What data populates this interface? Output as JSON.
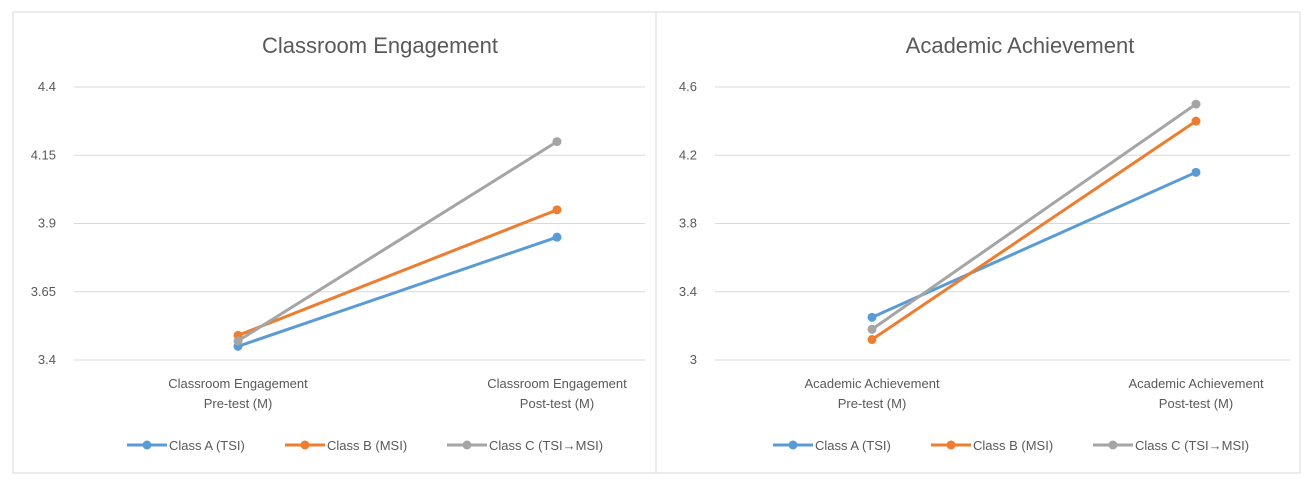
{
  "chart_data": [
    {
      "type": "line",
      "title": "Classroom Engagement",
      "xlabel": "",
      "ylabel": "",
      "categories": [
        [
          "Classroom Engagement",
          "Pre-test (M)"
        ],
        [
          "Classroom Engagement",
          "Post-test (M)"
        ]
      ],
      "ylim": [
        3.4,
        4.4
      ],
      "yticks": [
        "3.4",
        "3.65",
        "3.9",
        "4.15",
        "4.4"
      ],
      "grid": true,
      "legend": "bottom",
      "series": [
        {
          "name": "Class A (TSI)",
          "color": "#5b9bd5",
          "values": [
            3.45,
            3.85
          ]
        },
        {
          "name": "Class B (MSI)",
          "color": "#ed7d31",
          "values": [
            3.49,
            3.95
          ]
        },
        {
          "name": "Class C (TSI→MSI)",
          "color": "#a5a5a5",
          "values": [
            3.47,
            4.2
          ]
        }
      ]
    },
    {
      "type": "line",
      "title": "Academic Achievement",
      "xlabel": "",
      "ylabel": "",
      "categories": [
        [
          "Academic Achievement",
          "Pre-test (M)"
        ],
        [
          "Academic Achievement",
          "Post-test (M)"
        ]
      ],
      "ylim": [
        3.0,
        4.6
      ],
      "yticks": [
        "3",
        "3.4",
        "3.8",
        "4.2",
        "4.6"
      ],
      "grid": true,
      "legend": "bottom",
      "series": [
        {
          "name": "Class A (TSI)",
          "color": "#5b9bd5",
          "values": [
            3.25,
            4.1
          ]
        },
        {
          "name": "Class B (MSI)",
          "color": "#ed7d31",
          "values": [
            3.12,
            4.4
          ]
        },
        {
          "name": "Class C (TSI→MSI)",
          "color": "#a5a5a5",
          "values": [
            3.18,
            4.5
          ]
        }
      ]
    }
  ]
}
